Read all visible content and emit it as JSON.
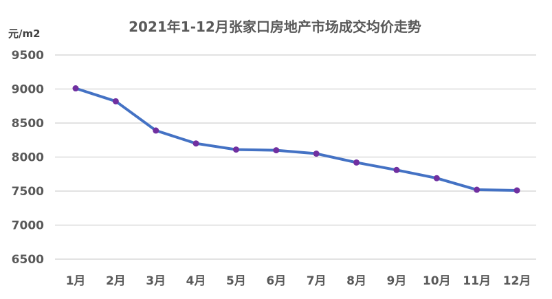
{
  "chart_data": {
    "type": "line",
    "title": "2021年1-12月张家口房地产市场成交均价走势",
    "ylabel": "元/m2",
    "xlabel": "",
    "categories": [
      "1月",
      "2月",
      "3月",
      "4月",
      "5月",
      "6月",
      "7月",
      "8月",
      "9月",
      "10月",
      "11月",
      "12月"
    ],
    "series": [
      {
        "values": [
          9010,
          8820,
          8390,
          8200,
          8110,
          8100,
          8050,
          7920,
          7810,
          7690,
          7520,
          7510
        ]
      }
    ],
    "ylim": [
      6500,
      9500
    ],
    "yticks": [
      "6500",
      "7000",
      "7500",
      "8000",
      "8500",
      "9000",
      "9500"
    ],
    "grid": true,
    "legend": "none",
    "colors": {
      "line": "#4472c4",
      "marker": "#7030a0",
      "grid": "#d9d9d9",
      "text": "#595959"
    }
  }
}
